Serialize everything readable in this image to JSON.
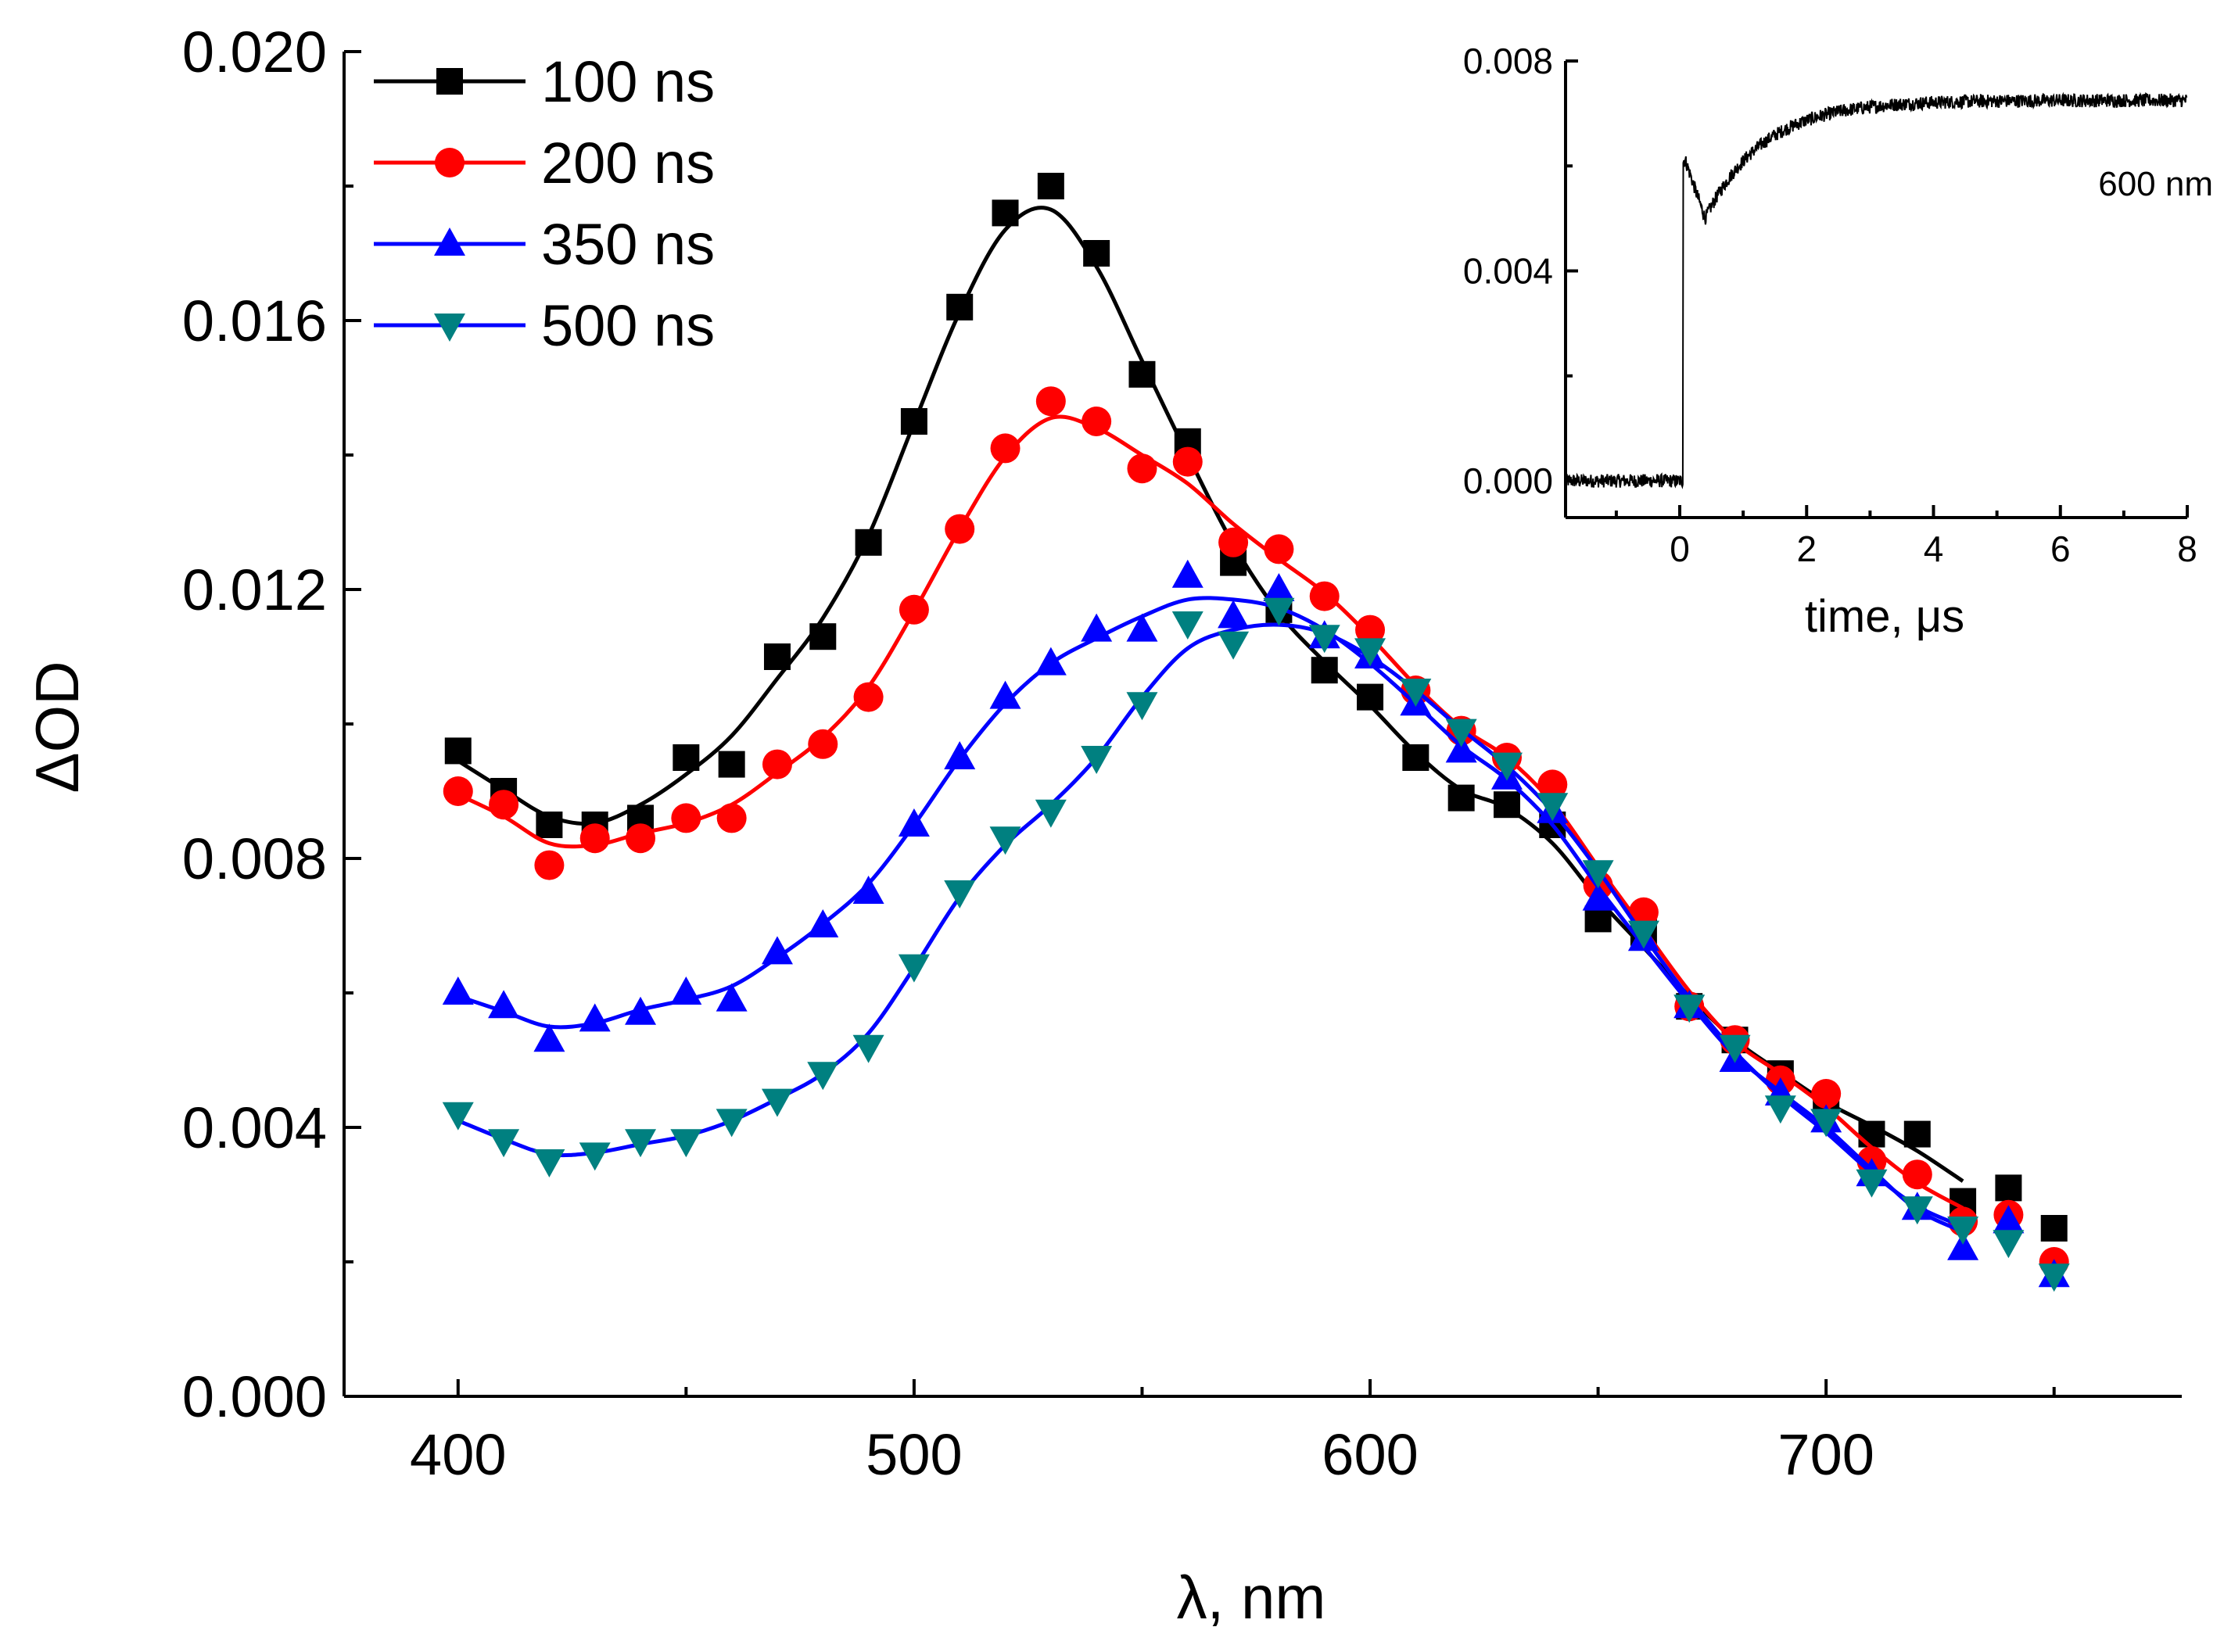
{
  "chart_data": [
    {
      "type": "scatter",
      "title": "",
      "xlabel": "λ, nm",
      "ylabel": "ΔOD",
      "xlim": [
        375,
        778
      ],
      "ylim": [
        0,
        0.02
      ],
      "xticks": [
        400,
        500,
        600,
        700
      ],
      "xtick_labels": [
        "400",
        "500",
        "600",
        "700"
      ],
      "yticks": [
        0,
        0.004,
        0.008,
        0.012,
        0.016,
        0.02
      ],
      "ytick_labels": [
        "0.000",
        "0.004",
        "0.008",
        "0.012",
        "0.016",
        "0.020"
      ],
      "legend_position": "top-left",
      "x": [
        400,
        410,
        420,
        430,
        440,
        450,
        460,
        470,
        480,
        490,
        500,
        510,
        520,
        530,
        540,
        550,
        560,
        570,
        580,
        590,
        600,
        610,
        620,
        630,
        640,
        650,
        660,
        670,
        680,
        690,
        700,
        710,
        720,
        730,
        740,
        750
      ],
      "series": [
        {
          "name": "100 ns",
          "color": "#000000",
          "marker": "square",
          "values": [
            0.0096,
            0.009,
            0.0085,
            0.0085,
            0.0086,
            0.0095,
            0.0094,
            0.011,
            0.0113,
            0.0127,
            0.0145,
            0.0162,
            0.0176,
            0.018,
            0.017,
            0.0152,
            0.0142,
            0.0124,
            0.0117,
            0.0108,
            0.0104,
            0.0095,
            0.0089,
            0.0088,
            0.0085,
            0.0071,
            0.0069,
            0.0058,
            0.0053,
            0.0048,
            0.0044,
            0.0039,
            0.0039,
            0.0029,
            0.0031,
            0.0025
          ]
        },
        {
          "name": "200 ns",
          "color": "#ff0000",
          "marker": "circle",
          "values": [
            0.009,
            0.0088,
            0.0079,
            0.0083,
            0.0083,
            0.0086,
            0.0086,
            0.0094,
            0.0097,
            0.0104,
            0.0117,
            0.0129,
            0.0141,
            0.0148,
            0.0145,
            0.0138,
            0.0139,
            0.0127,
            0.0126,
            0.0119,
            0.0114,
            0.0105,
            0.0099,
            0.0095,
            0.0091,
            0.0076,
            0.0072,
            0.0058,
            0.0053,
            0.0047,
            0.0045,
            0.0035,
            0.0033,
            0.0026,
            0.0027,
            0.002
          ]
        },
        {
          "name": "350 ns",
          "color": "#0000ff",
          "marker": "triangle-up",
          "values": [
            0.006,
            0.0058,
            0.0053,
            0.0056,
            0.0057,
            0.006,
            0.0059,
            0.0066,
            0.007,
            0.0075,
            0.0085,
            0.0095,
            0.0104,
            0.0109,
            0.0114,
            0.0114,
            0.0122,
            0.0116,
            0.012,
            0.0113,
            0.011,
            0.0103,
            0.0096,
            0.0092,
            0.0087,
            0.0074,
            0.0068,
            0.0058,
            0.005,
            0.0045,
            0.0041,
            0.0033,
            0.0028,
            0.0022,
            0.0026,
            0.0018
          ]
        },
        {
          "name": "500 ns",
          "color": "#008080",
          "line_color": "#0000ff",
          "marker": "triangle-down",
          "values": [
            0.0042,
            0.0038,
            0.0035,
            0.0036,
            0.0038,
            0.0038,
            0.0041,
            0.0044,
            0.0048,
            0.0052,
            0.0064,
            0.0075,
            0.0083,
            0.0087,
            0.0095,
            0.0103,
            0.0115,
            0.0112,
            0.0117,
            0.0113,
            0.0111,
            0.0105,
            0.0099,
            0.0094,
            0.0088,
            0.0078,
            0.0069,
            0.0058,
            0.0052,
            0.0043,
            0.0041,
            0.0032,
            0.0028,
            0.0025,
            0.0023,
            0.0018
          ]
        }
      ]
    },
    {
      "type": "line",
      "title": "",
      "xlabel": "time, μs",
      "ylabel": "",
      "xlim": [
        -1.8,
        8
      ],
      "ylim": [
        -0.0007,
        0.008
      ],
      "xticks": [
        0,
        2,
        4,
        6,
        8
      ],
      "xtick_labels": [
        "0",
        "2",
        "4",
        "6",
        "8"
      ],
      "yticks": [
        0,
        0.004,
        0.008
      ],
      "ytick_labels": [
        "0.000",
        "0.004",
        "0.008"
      ],
      "annotation": "600 nm",
      "color": "#000000",
      "model": {
        "baseline": 0.0,
        "jump_at": 0.05,
        "peak": 0.0061,
        "dip": 0.005,
        "dip_time": 0.4,
        "plateau": 0.00725,
        "rise_tau": 0.9,
        "noise": 0.00013
      }
    }
  ]
}
